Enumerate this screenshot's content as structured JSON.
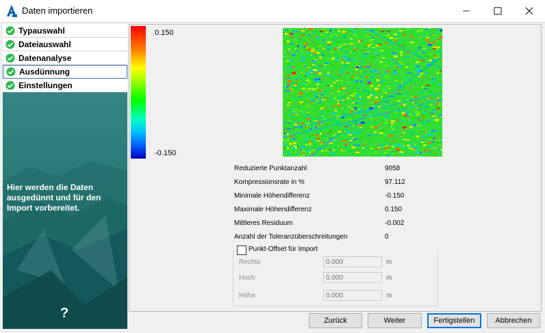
{
  "window": {
    "title": "Daten importieren"
  },
  "nav": {
    "items": [
      {
        "label": "Typauswahl",
        "state": "done"
      },
      {
        "label": "Dateiauswahl",
        "state": "done"
      },
      {
        "label": "Datenanalyse",
        "state": "done"
      },
      {
        "label": "Ausdünnung",
        "state": "done",
        "selected": true
      },
      {
        "label": "Einstellungen",
        "state": "done"
      }
    ],
    "description": "Hier werden die Daten ausgedünnt und für den Import vorbereitet.",
    "help": "?"
  },
  "colorbar": {
    "max": "0.150",
    "min": "-0.150"
  },
  "stats": [
    {
      "label": "Reduzierte Punktanzahl",
      "value": "9058"
    },
    {
      "label": "Kompressionsrate in %",
      "value": "97.112"
    },
    {
      "label": "Minimale Höhendifferenz",
      "value": "-0.150"
    },
    {
      "label": "Maximale Höhendifferenz",
      "value": "0.150"
    },
    {
      "label": "Mittleres Residuum",
      "value": "-0.002"
    },
    {
      "label": "Anzahl der Toleranzüberschreitungen",
      "value": "0"
    }
  ],
  "offset": {
    "checkbox_label": "Punkt-Offset für Import",
    "checked": false,
    "fields": [
      {
        "label": "Rechts",
        "value": "0.000",
        "unit": "m"
      },
      {
        "label": "Hoch",
        "value": "0.000",
        "unit": "m"
      },
      {
        "label": "Höhe",
        "value": "0.000",
        "unit": "m"
      }
    ]
  },
  "buttons": {
    "back": "Zurück",
    "next": "Weiter",
    "finish": "Fertigstellen",
    "cancel": "Abbrechen"
  },
  "colors": {
    "check_green": "#2db84d",
    "left_panel_teal": "#1f7f7c",
    "default_button_border": "#0078d7"
  }
}
